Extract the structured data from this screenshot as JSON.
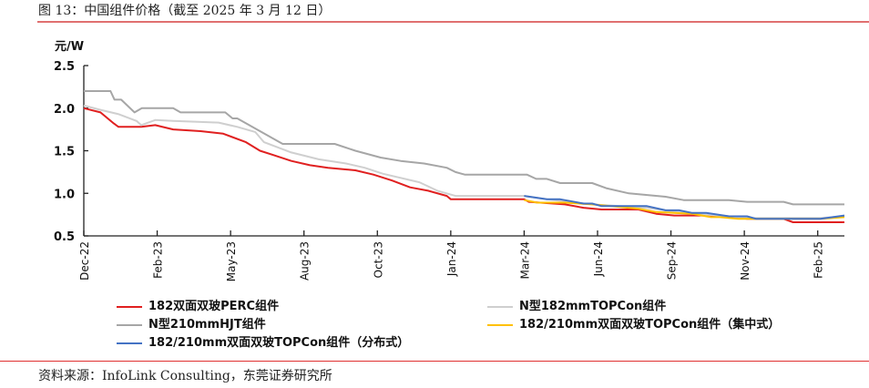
{
  "header": {
    "title": "图 13：中国组件价格（截至 2025 年 3 月 12 日）"
  },
  "footer": {
    "source": "资料来源：InfoLink Consulting，东莞证券研究所"
  },
  "chart_data": {
    "type": "line",
    "title": "图 13：中国组件价格（截至 2025 年 3 月 12 日）",
    "ylabel": "元/W",
    "xlabel": "",
    "ylim": [
      0.5,
      2.5
    ],
    "yticks": [
      "0.5",
      "1.0",
      "1.5",
      "2.0",
      "2.5"
    ],
    "yticks_values": [
      0.5,
      1.0,
      1.5,
      2.0,
      2.5
    ],
    "x_unit": "week index from Dec-22",
    "xlim": [
      0,
      114
    ],
    "xtick_labels": [
      "Dec-22",
      "Feb-23",
      "May-23",
      "Aug-23",
      "Oct-23",
      "Jan-24",
      "Mar-24",
      "Jun-24",
      "Sep-24",
      "Nov-24",
      "Feb-25"
    ],
    "xtick_positions": [
      0,
      11,
      22,
      33,
      44,
      55,
      66,
      77,
      88,
      99,
      110
    ],
    "grid": false,
    "legend_position": "bottom",
    "series": [
      {
        "name": "182双面双玻PERC组件",
        "color": "#e02020",
        "points": [
          [
            0,
            2.0
          ],
          [
            2.5,
            1.95
          ],
          [
            4.5,
            1.82
          ],
          [
            5.2,
            1.78
          ],
          [
            8.6,
            1.78
          ],
          [
            10.7,
            1.8
          ],
          [
            13.4,
            1.75
          ],
          [
            17.5,
            1.73
          ],
          [
            20.9,
            1.7
          ],
          [
            24.3,
            1.6
          ],
          [
            26.4,
            1.5
          ],
          [
            28.4,
            1.45
          ],
          [
            31.1,
            1.38
          ],
          [
            33.9,
            1.33
          ],
          [
            36.6,
            1.3
          ],
          [
            40.7,
            1.27
          ],
          [
            43.4,
            1.22
          ],
          [
            46.2,
            1.15
          ],
          [
            48.9,
            1.07
          ],
          [
            51.6,
            1.03
          ],
          [
            54.4,
            0.97
          ],
          [
            55,
            0.93
          ],
          [
            66,
            0.93
          ],
          [
            66.7,
            0.9
          ],
          [
            72.1,
            0.87
          ],
          [
            74.9,
            0.83
          ],
          [
            77.6,
            0.81
          ],
          [
            83.1,
            0.81
          ],
          [
            85.8,
            0.76
          ],
          [
            88.5,
            0.74
          ],
          [
            94,
            0.74
          ],
          [
            96.7,
            0.73
          ],
          [
            99.4,
            0.7
          ],
          [
            104.9,
            0.7
          ],
          [
            106.3,
            0.66
          ],
          [
            114,
            0.66
          ]
        ]
      },
      {
        "name": "N型182mmTOPCon组件",
        "color": "#cfcfcf",
        "points": [
          [
            0,
            2.03
          ],
          [
            2.5,
            1.98
          ],
          [
            5.2,
            1.93
          ],
          [
            7.9,
            1.85
          ],
          [
            8.6,
            1.8
          ],
          [
            10.7,
            1.86
          ],
          [
            13.4,
            1.85
          ],
          [
            20.2,
            1.83
          ],
          [
            23,
            1.78
          ],
          [
            25.7,
            1.72
          ],
          [
            27,
            1.6
          ],
          [
            31.1,
            1.48
          ],
          [
            35.2,
            1.4
          ],
          [
            39.3,
            1.35
          ],
          [
            42.1,
            1.3
          ],
          [
            44.8,
            1.23
          ],
          [
            50.3,
            1.13
          ],
          [
            53,
            1.03
          ],
          [
            55.7,
            0.97
          ],
          [
            66,
            0.97
          ],
          [
            69.4,
            0.93
          ],
          [
            76.2,
            0.87
          ],
          [
            84.4,
            0.83
          ],
          [
            89.9,
            0.77
          ],
          [
            96.7,
            0.73
          ],
          [
            99.4,
            0.71
          ],
          [
            110.4,
            0.71
          ],
          [
            114,
            0.73
          ]
        ]
      },
      {
        "name": "N型210mmHJT组件",
        "color": "#a6a6a6",
        "points": [
          [
            0,
            2.2
          ],
          [
            4,
            2.2
          ],
          [
            4.6,
            2.1
          ],
          [
            5.6,
            2.1
          ],
          [
            7.6,
            1.95
          ],
          [
            8.7,
            2.0
          ],
          [
            13.4,
            2.0
          ],
          [
            14.5,
            1.95
          ],
          [
            21.2,
            1.95
          ],
          [
            22.3,
            1.88
          ],
          [
            23,
            1.88
          ],
          [
            29.8,
            1.58
          ],
          [
            37.6,
            1.58
          ],
          [
            40.7,
            1.5
          ],
          [
            44.5,
            1.42
          ],
          [
            47.5,
            1.38
          ],
          [
            51,
            1.35
          ],
          [
            54.4,
            1.3
          ],
          [
            55.7,
            1.25
          ],
          [
            57.1,
            1.22
          ],
          [
            66.4,
            1.22
          ],
          [
            67.8,
            1.17
          ],
          [
            69.4,
            1.17
          ],
          [
            71.4,
            1.12
          ],
          [
            76.2,
            1.12
          ],
          [
            78.3,
            1.06
          ],
          [
            81.7,
            1.0
          ],
          [
            87.2,
            0.96
          ],
          [
            89.9,
            0.92
          ],
          [
            96.7,
            0.92
          ],
          [
            99.4,
            0.9
          ],
          [
            104.9,
            0.9
          ],
          [
            106.3,
            0.87
          ],
          [
            114,
            0.87
          ]
        ]
      },
      {
        "name": "182/210mm双面双玻TOPCon组件（集中式）",
        "color": "#ffc000",
        "points": [
          [
            66,
            0.92
          ],
          [
            68,
            0.89
          ],
          [
            72.1,
            0.89
          ],
          [
            76.2,
            0.87
          ],
          [
            83.1,
            0.82
          ],
          [
            85.8,
            0.78
          ],
          [
            91.2,
            0.76
          ],
          [
            94,
            0.72
          ],
          [
            95.3,
            0.72
          ],
          [
            98.1,
            0.7
          ],
          [
            107.6,
            0.7
          ],
          [
            110.4,
            0.7
          ],
          [
            114,
            0.72
          ]
        ]
      },
      {
        "name": "182/210mm双面双玻TOPCon组件（分布式）",
        "color": "#4472c4",
        "points": [
          [
            66,
            0.97
          ],
          [
            69.4,
            0.93
          ],
          [
            71.4,
            0.93
          ],
          [
            74.9,
            0.88
          ],
          [
            76.2,
            0.88
          ],
          [
            77.6,
            0.85
          ],
          [
            84.4,
            0.85
          ],
          [
            87.2,
            0.8
          ],
          [
            89.2,
            0.8
          ],
          [
            91.2,
            0.77
          ],
          [
            93.3,
            0.77
          ],
          [
            96.7,
            0.73
          ],
          [
            99.4,
            0.73
          ],
          [
            100.8,
            0.7
          ],
          [
            110.4,
            0.7
          ],
          [
            114,
            0.74
          ]
        ]
      }
    ]
  }
}
